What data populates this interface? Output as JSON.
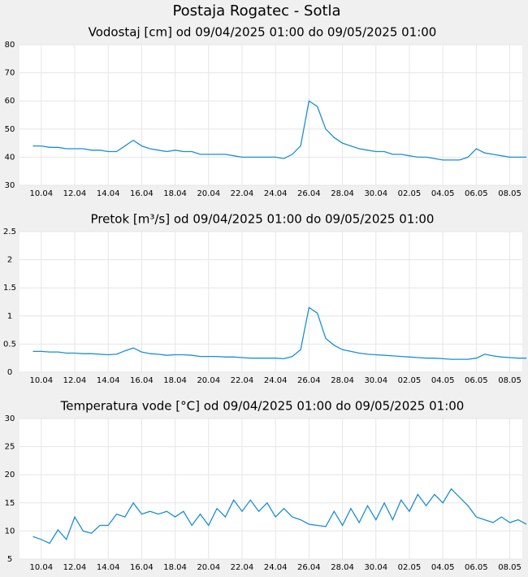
{
  "title": "Postaja Rogatec - Sotla",
  "chart_data": [
    {
      "type": "line",
      "title": "Vodostaj [cm] od 09/04/2025 01:00 do 09/05/2025 01:00",
      "color": "#1a8fd6",
      "grid": true,
      "x": [
        9.5,
        10,
        10.5,
        11,
        11.5,
        12,
        12.5,
        13,
        13.5,
        14,
        14.5,
        15,
        15.5,
        16,
        16.5,
        17,
        17.5,
        18,
        18.5,
        19,
        19.5,
        20,
        20.5,
        21,
        21.5,
        22,
        22.5,
        23,
        23.5,
        24,
        24.5,
        25,
        25.5,
        26,
        26.5,
        27,
        27.5,
        28,
        28.5,
        29,
        29.5,
        30,
        30.5,
        31,
        31.5,
        32,
        32.5,
        33,
        33.5,
        34,
        34.5,
        35,
        35.5,
        36,
        36.5,
        37,
        37.5,
        38,
        38.5,
        39
      ],
      "values": [
        44,
        44,
        43.5,
        43.5,
        43,
        43,
        43,
        42.5,
        42.5,
        42,
        42,
        44,
        46,
        44,
        43,
        42.5,
        42,
        42.5,
        42,
        42,
        41,
        41,
        41,
        41,
        40.5,
        40,
        40,
        40,
        40,
        40,
        39.5,
        41,
        44,
        60,
        58,
        50,
        47,
        45,
        44,
        43,
        42.5,
        42,
        42,
        41,
        41,
        40.5,
        40,
        40,
        39.5,
        39,
        39,
        39,
        40,
        43,
        41.5,
        41,
        40.5,
        40,
        40,
        40
      ],
      "xlim": [
        8.7,
        38.75
      ],
      "xticks": [
        {
          "value": 10,
          "label": "10.04"
        },
        {
          "value": 12,
          "label": "12.04"
        },
        {
          "value": 14,
          "label": "14.04"
        },
        {
          "value": 16,
          "label": "16.04"
        },
        {
          "value": 18,
          "label": "18.04"
        },
        {
          "value": 20,
          "label": "20.04"
        },
        {
          "value": 22,
          "label": "22.04"
        },
        {
          "value": 24,
          "label": "24.04"
        },
        {
          "value": 26,
          "label": "26.04"
        },
        {
          "value": 28,
          "label": "28.04"
        },
        {
          "value": 30,
          "label": "30.04"
        },
        {
          "value": 32,
          "label": "02.05"
        },
        {
          "value": 34,
          "label": "04.05"
        },
        {
          "value": 36,
          "label": "06.05"
        },
        {
          "value": 38,
          "label": "08.05"
        }
      ],
      "ylim": [
        30,
        80
      ],
      "yticks": [
        30,
        40,
        50,
        60,
        70,
        80
      ]
    },
    {
      "type": "line",
      "title": "Pretok [m³/s] od 09/04/2025 01:00 do 09/05/2025 01:00",
      "color": "#1a8fd6",
      "grid": true,
      "x": [
        9.5,
        10,
        10.5,
        11,
        11.5,
        12,
        12.5,
        13,
        13.5,
        14,
        14.5,
        15,
        15.5,
        16,
        16.5,
        17,
        17.5,
        18,
        18.5,
        19,
        19.5,
        20,
        20.5,
        21,
        21.5,
        22,
        22.5,
        23,
        23.5,
        24,
        24.5,
        25,
        25.5,
        26,
        26.5,
        27,
        27.5,
        28,
        28.5,
        29,
        29.5,
        30,
        30.5,
        31,
        31.5,
        32,
        32.5,
        33,
        33.5,
        34,
        34.5,
        35,
        35.5,
        36,
        36.5,
        37,
        37.5,
        38,
        38.5,
        39
      ],
      "values": [
        0.37,
        0.37,
        0.36,
        0.36,
        0.34,
        0.34,
        0.33,
        0.33,
        0.32,
        0.31,
        0.32,
        0.38,
        0.43,
        0.36,
        0.33,
        0.32,
        0.3,
        0.31,
        0.31,
        0.3,
        0.28,
        0.28,
        0.28,
        0.27,
        0.27,
        0.26,
        0.25,
        0.25,
        0.25,
        0.25,
        0.24,
        0.28,
        0.4,
        1.15,
        1.05,
        0.6,
        0.48,
        0.4,
        0.37,
        0.34,
        0.32,
        0.31,
        0.3,
        0.29,
        0.28,
        0.27,
        0.26,
        0.25,
        0.25,
        0.24,
        0.23,
        0.23,
        0.23,
        0.25,
        0.32,
        0.29,
        0.27,
        0.26,
        0.25,
        0.25
      ],
      "xlim": [
        8.7,
        38.75
      ],
      "xticks": [
        {
          "value": 10,
          "label": "10.04"
        },
        {
          "value": 12,
          "label": "12.04"
        },
        {
          "value": 14,
          "label": "14.04"
        },
        {
          "value": 16,
          "label": "16.04"
        },
        {
          "value": 18,
          "label": "18.04"
        },
        {
          "value": 20,
          "label": "20.04"
        },
        {
          "value": 22,
          "label": "22.04"
        },
        {
          "value": 24,
          "label": "24.04"
        },
        {
          "value": 26,
          "label": "26.04"
        },
        {
          "value": 28,
          "label": "28.04"
        },
        {
          "value": 30,
          "label": "30.04"
        },
        {
          "value": 32,
          "label": "02.05"
        },
        {
          "value": 34,
          "label": "04.05"
        },
        {
          "value": 36,
          "label": "06.05"
        },
        {
          "value": 38,
          "label": "08.05"
        }
      ],
      "ylim": [
        0,
        2.5
      ],
      "yticks": [
        0,
        0.5,
        1,
        1.5,
        2,
        2.5
      ]
    },
    {
      "type": "line",
      "title": "Temperatura vode [°C] od 09/04/2025 01:00 do 09/05/2025 01:00",
      "color": "#1a8fd6",
      "grid": true,
      "x": [
        9.5,
        10,
        10.5,
        11,
        11.5,
        12,
        12.5,
        13,
        13.5,
        14,
        14.5,
        15,
        15.5,
        16,
        16.5,
        17,
        17.5,
        18,
        18.5,
        19,
        19.5,
        20,
        20.5,
        21,
        21.5,
        22,
        22.5,
        23,
        23.5,
        24,
        24.5,
        25,
        25.5,
        26,
        26.5,
        27,
        27.5,
        28,
        28.5,
        29,
        29.5,
        30,
        30.5,
        31,
        31.5,
        32,
        32.5,
        33,
        33.5,
        34,
        34.5,
        35,
        35.5,
        36,
        36.5,
        37,
        37.5,
        38,
        38.5,
        39
      ],
      "values": [
        9,
        8.5,
        7.8,
        10.2,
        8.5,
        12.5,
        10,
        9.6,
        11,
        11,
        13,
        12.5,
        15,
        13,
        13.5,
        13,
        13.5,
        12.5,
        13.5,
        11,
        13,
        11,
        14,
        12.5,
        15.5,
        13.5,
        15.5,
        13.5,
        15,
        12.5,
        14,
        12.5,
        12,
        11.2,
        11,
        10.8,
        13.5,
        11,
        14,
        11.5,
        14.5,
        12,
        15,
        12,
        15.5,
        13.5,
        16.5,
        14.5,
        16.5,
        15,
        17.5,
        16,
        14.5,
        12.5,
        12,
        11.5,
        12.5,
        11.5,
        12,
        11.2
      ],
      "xlim": [
        8.7,
        38.75
      ],
      "xticks": [
        {
          "value": 10,
          "label": "10.04"
        },
        {
          "value": 12,
          "label": "12.04"
        },
        {
          "value": 14,
          "label": "14.04"
        },
        {
          "value": 16,
          "label": "16.04"
        },
        {
          "value": 18,
          "label": "18.04"
        },
        {
          "value": 20,
          "label": "20.04"
        },
        {
          "value": 22,
          "label": "22.04"
        },
        {
          "value": 24,
          "label": "24.04"
        },
        {
          "value": 26,
          "label": "26.04"
        },
        {
          "value": 28,
          "label": "28.04"
        },
        {
          "value": 30,
          "label": "30.04"
        },
        {
          "value": 32,
          "label": "02.05"
        },
        {
          "value": 34,
          "label": "04.05"
        },
        {
          "value": 36,
          "label": "06.05"
        },
        {
          "value": 38,
          "label": "08.05"
        }
      ],
      "ylim": [
        5,
        30
      ],
      "yticks": [
        5,
        10,
        15,
        20,
        25,
        30
      ]
    }
  ]
}
